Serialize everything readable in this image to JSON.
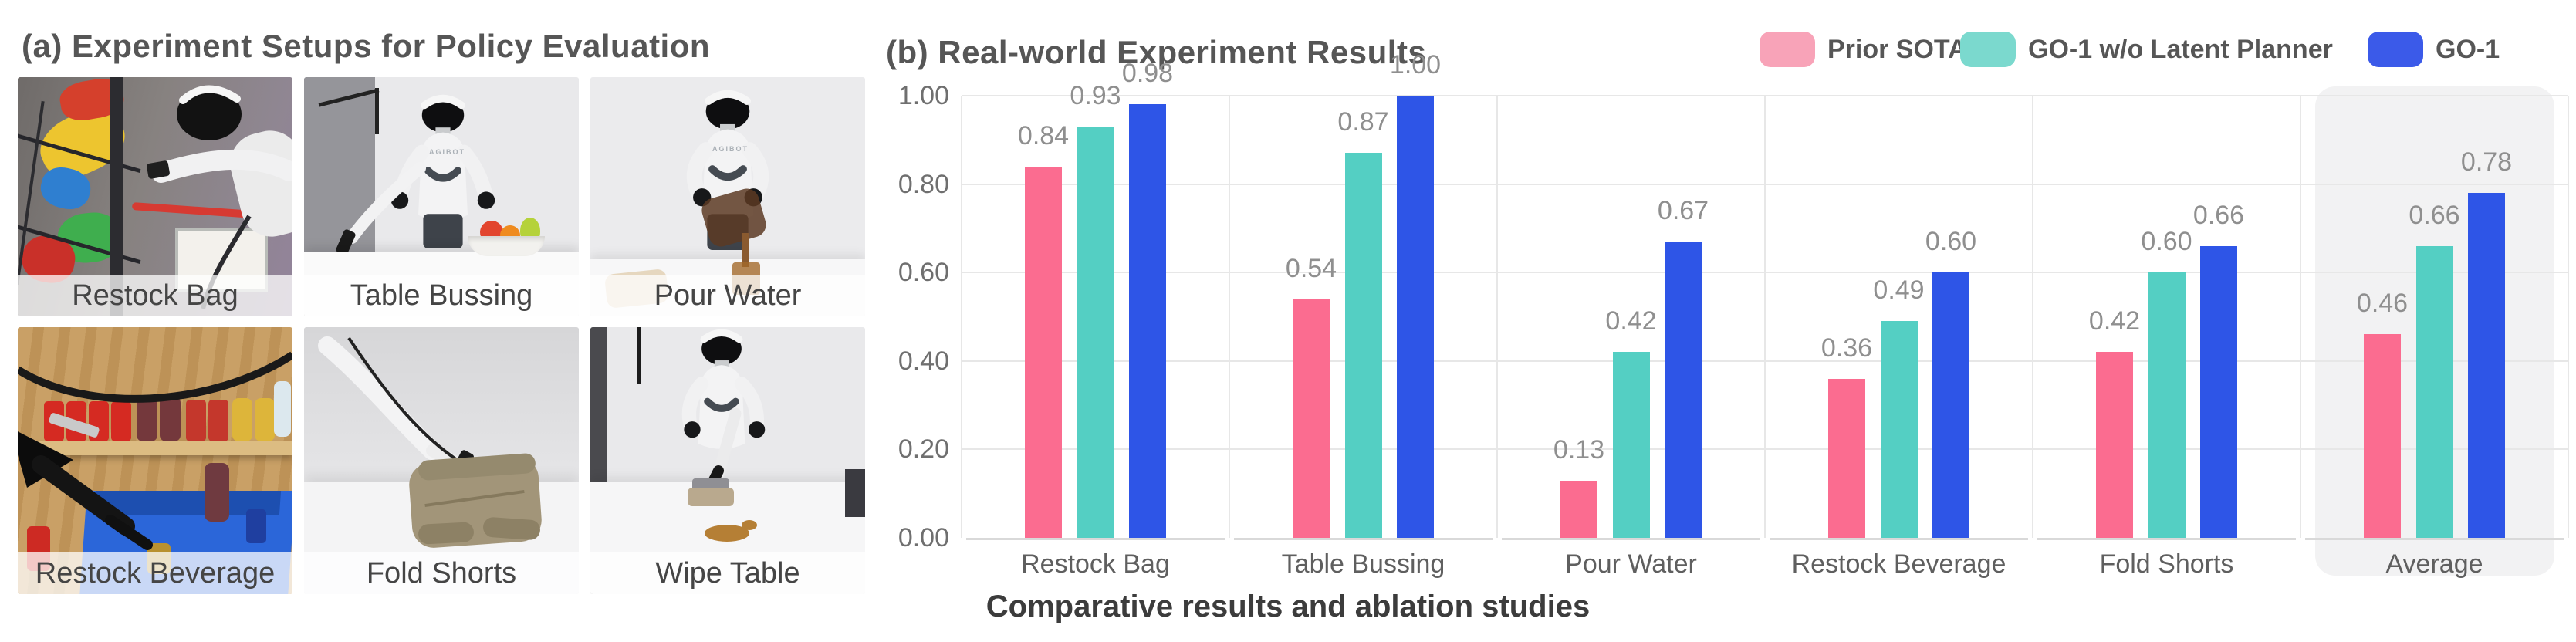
{
  "panel_a": {
    "title": "(a) Experiment Setups for Policy Evaluation",
    "robot_brand": "AGIBOT",
    "setups": [
      {
        "label": "Restock Bag"
      },
      {
        "label": "Table Bussing"
      },
      {
        "label": "Pour Water"
      },
      {
        "label": "Restock Beverage"
      },
      {
        "label": "Fold Shorts"
      },
      {
        "label": "Wipe Table"
      }
    ]
  },
  "panel_b": {
    "title": "(b) Real-world Experiment Results",
    "caption": "Comparative results and ablation studies"
  },
  "chart_data": {
    "type": "bar",
    "title": "(b) Real-world Experiment Results",
    "xlabel": "",
    "ylabel": "",
    "ylim": [
      0,
      1.0
    ],
    "grid": true,
    "legend_position": "top-right",
    "highlighted_category": "Average",
    "value_label_decimals": 2,
    "categories": [
      "Restock Bag",
      "Table Bussing",
      "Pour Water",
      "Restock Beverage",
      "Fold Shorts",
      "Average"
    ],
    "y_ticks": [
      "0.00",
      "0.20",
      "0.40",
      "0.60",
      "0.80",
      "1.00"
    ],
    "series": [
      {
        "name": "Prior SOTA",
        "color": "#FB6C90",
        "legend_color": "#F8A3B8",
        "values": [
          0.84,
          0.54,
          0.13,
          0.36,
          0.42,
          0.46
        ]
      },
      {
        "name": "GO-1 w/o Latent Planner",
        "color": "#54CFC3",
        "legend_color": "#7BD9CE",
        "values": [
          0.93,
          0.87,
          0.42,
          0.49,
          0.6,
          0.66
        ]
      },
      {
        "name": "GO-1",
        "color": "#2E55E7",
        "legend_color": "#3B5AE9",
        "values": [
          0.98,
          1.0,
          0.67,
          0.6,
          0.66,
          0.78
        ]
      }
    ],
    "colors": {
      "grid": "#E7E7E7",
      "axis": "#D9D9D9",
      "highlight_bg": "#F2F2F3",
      "tick": "#6F6F6F",
      "value_label": "#8F8F8F",
      "category": "#5F5F5F"
    }
  }
}
